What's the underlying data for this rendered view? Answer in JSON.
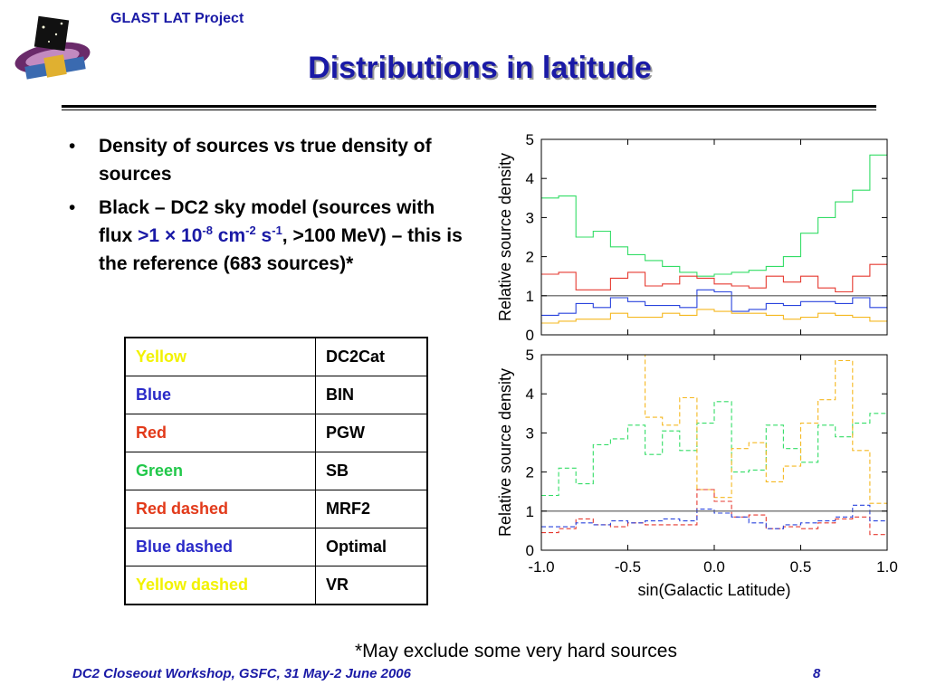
{
  "header": {
    "project": "GLAST LAT Project"
  },
  "title": "Distributions in latitude",
  "bullets": [
    {
      "text": "Density of sources vs true density of sources"
    },
    {
      "pre": "Black – DC2 sky model (sources with flux ",
      "flux_lead": ">1 × 10",
      "exp1": "-8",
      "unit1": " cm",
      "exp2": "-2",
      "unit2": " s",
      "exp3": "-1",
      "post": ", >100 MeV) – this is the reference (683 sources)*"
    }
  ],
  "legend": {
    "rows": [
      {
        "label": "Yellow",
        "value": "DC2Cat",
        "color": "#f2f200"
      },
      {
        "label": "Blue",
        "value": "BIN",
        "color": "#2a2ac8"
      },
      {
        "label": "Red",
        "value": "PGW",
        "color": "#e23a1a"
      },
      {
        "label": "Green",
        "value": "SB",
        "color": "#22c84a"
      },
      {
        "label": "Red dashed",
        "value": "MRF2",
        "color": "#e23a1a"
      },
      {
        "label": "Blue dashed",
        "value": "Optimal",
        "color": "#2a2ac8"
      },
      {
        "label": "Yellow dashed",
        "value": "VR",
        "color": "#f2f200"
      }
    ]
  },
  "footnote": "*May exclude some very hard sources",
  "footer": {
    "event": "DC2 Closeout Workshop, GSFC, 31 May-2 June 2006",
    "page": "8"
  },
  "colors": {
    "title": "#1a1aa6",
    "green": "#33dd66",
    "red": "#e63a30",
    "blue": "#2a44dd",
    "yellow": "#f5b820",
    "reference": "#555555"
  },
  "chart_data": [
    {
      "type": "line",
      "style": "step",
      "xlabel": "",
      "ylabel": "Relative source density",
      "xlim": [
        -1.0,
        1.0
      ],
      "ylim": [
        0,
        5
      ],
      "yticks": [
        "0",
        "1",
        "2",
        "3",
        "4",
        "5"
      ],
      "x": [
        -1.0,
        -0.9,
        -0.8,
        -0.7,
        -0.6,
        -0.5,
        -0.4,
        -0.3,
        -0.2,
        -0.1,
        0.0,
        0.1,
        0.2,
        0.3,
        0.4,
        0.5,
        0.6,
        0.7,
        0.8,
        0.9,
        1.0
      ],
      "series": [
        {
          "color": "green",
          "dashed": false,
          "values": [
            3.5,
            3.55,
            2.5,
            2.65,
            2.25,
            2.05,
            1.9,
            1.75,
            1.6,
            1.5,
            1.55,
            1.6,
            1.65,
            1.75,
            2.0,
            2.6,
            3.0,
            3.4,
            3.7,
            4.6,
            2.0
          ]
        },
        {
          "color": "red",
          "dashed": false,
          "values": [
            1.55,
            1.6,
            1.15,
            1.15,
            1.45,
            1.6,
            1.25,
            1.3,
            1.5,
            1.45,
            1.3,
            1.25,
            1.2,
            1.5,
            1.35,
            1.5,
            1.2,
            1.1,
            1.5,
            1.8,
            1.7
          ]
        },
        {
          "color": "blue",
          "dashed": false,
          "values": [
            0.5,
            0.55,
            0.8,
            0.7,
            0.95,
            0.85,
            0.75,
            0.75,
            0.7,
            1.15,
            1.1,
            0.6,
            0.65,
            0.8,
            0.75,
            0.85,
            0.85,
            0.8,
            0.95,
            0.7,
            0.7
          ]
        },
        {
          "color": "yellow",
          "dashed": false,
          "values": [
            0.3,
            0.35,
            0.4,
            0.4,
            0.55,
            0.45,
            0.45,
            0.55,
            0.5,
            0.65,
            0.6,
            0.55,
            0.55,
            0.5,
            0.4,
            0.45,
            0.55,
            0.5,
            0.45,
            0.35,
            0.4
          ]
        },
        {
          "color": "reference",
          "dashed": false,
          "values": [
            1.0,
            1.0,
            1.0,
            1.0,
            1.0,
            1.0,
            1.0,
            1.0,
            1.0,
            1.0,
            1.0,
            1.0,
            1.0,
            1.0,
            1.0,
            1.0,
            1.0,
            1.0,
            1.0,
            1.0,
            1.0
          ]
        }
      ]
    },
    {
      "type": "line",
      "style": "step",
      "xlabel": "sin(Galactic Latitude)",
      "ylabel": "Relative source density",
      "xlim": [
        -1.0,
        1.0
      ],
      "ylim": [
        0,
        5
      ],
      "xticks": [
        "-1.0",
        "-0.5",
        "0.0",
        "0.5",
        "1.0"
      ],
      "yticks": [
        "0",
        "1",
        "2",
        "3",
        "4",
        "5"
      ],
      "x": [
        -1.0,
        -0.9,
        -0.8,
        -0.7,
        -0.6,
        -0.5,
        -0.4,
        -0.3,
        -0.2,
        -0.1,
        0.0,
        0.1,
        0.2,
        0.3,
        0.4,
        0.5,
        0.6,
        0.7,
        0.8,
        0.9,
        1.0
      ],
      "series": [
        {
          "color": "green",
          "dashed": true,
          "values": [
            1.4,
            2.1,
            1.7,
            2.7,
            2.85,
            3.2,
            2.45,
            3.05,
            2.55,
            3.25,
            3.8,
            2.0,
            2.05,
            3.2,
            2.6,
            2.25,
            3.2,
            2.9,
            3.25,
            3.5,
            1.4
          ]
        },
        {
          "color": "yellow",
          "dashed": true,
          "values": [
            5.0,
            5.0,
            5.0,
            5.0,
            5.0,
            5.0,
            3.4,
            3.2,
            3.9,
            1.55,
            1.35,
            2.6,
            2.75,
            1.75,
            2.15,
            3.25,
            3.85,
            4.85,
            2.55,
            1.2,
            1.2
          ]
        },
        {
          "color": "red",
          "dashed": true,
          "values": [
            0.45,
            0.55,
            0.8,
            0.65,
            0.6,
            0.7,
            0.65,
            0.65,
            0.65,
            1.55,
            1.25,
            0.85,
            0.9,
            0.55,
            0.6,
            0.55,
            0.7,
            0.8,
            0.85,
            0.4,
            0.4
          ]
        },
        {
          "color": "blue",
          "dashed": true,
          "values": [
            0.6,
            0.6,
            0.7,
            0.65,
            0.75,
            0.7,
            0.75,
            0.8,
            0.75,
            1.05,
            0.95,
            0.85,
            0.7,
            0.55,
            0.65,
            0.7,
            0.75,
            0.85,
            1.15,
            0.75,
            0.75
          ]
        },
        {
          "color": "reference",
          "dashed": false,
          "values": [
            1.0,
            1.0,
            1.0,
            1.0,
            1.0,
            1.0,
            1.0,
            1.0,
            1.0,
            1.0,
            1.0,
            1.0,
            1.0,
            1.0,
            1.0,
            1.0,
            1.0,
            1.0,
            1.0,
            1.0,
            1.0
          ]
        }
      ]
    }
  ]
}
